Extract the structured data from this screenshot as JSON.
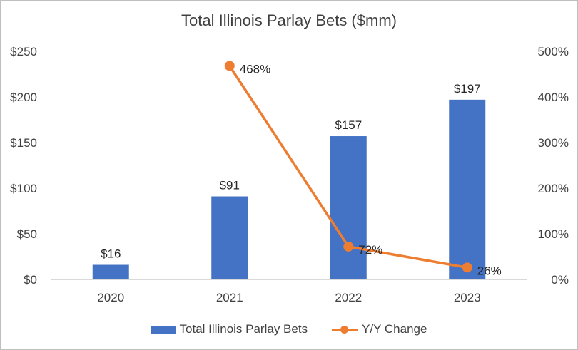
{
  "chart_data": {
    "type": "bar",
    "title": "Total Illinois Parlay Bets ($mm)",
    "categories": [
      "2020",
      "2021",
      "2022",
      "2023"
    ],
    "series": [
      {
        "name": "Total Illinois Parlay Bets",
        "type": "bar",
        "axis": "left",
        "values": [
          16,
          91,
          157,
          197
        ],
        "labels": [
          "$16",
          "$91",
          "$157",
          "$197"
        ],
        "color": "#4472C4"
      },
      {
        "name": "Y/Y Change",
        "type": "line",
        "axis": "right",
        "values": [
          null,
          468,
          72,
          26
        ],
        "labels": [
          "",
          "468%",
          "72%",
          "26%"
        ],
        "color": "#ED7D31"
      }
    ],
    "y_left": {
      "ylim": [
        0,
        250
      ],
      "ticks": [
        "$0",
        "$50",
        "$100",
        "$150",
        "$200",
        "$250"
      ]
    },
    "y_right": {
      "ylim": [
        0,
        500
      ],
      "ticks": [
        "0%",
        "100%",
        "200%",
        "300%",
        "400%",
        "500%"
      ]
    },
    "grid": false,
    "legend": "bottom"
  }
}
